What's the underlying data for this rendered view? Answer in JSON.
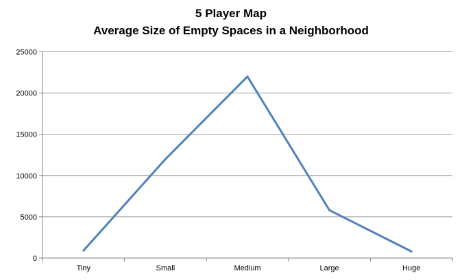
{
  "chart_data": {
    "type": "line",
    "title": "5 Player Map",
    "subtitle": "Average Size of Empty Spaces in a Neighborhood",
    "categories": [
      "Tiny",
      "Small",
      "Medium",
      "Large",
      "Huge"
    ],
    "values": [
      900,
      12000,
      22000,
      5800,
      800
    ],
    "xlabel": "",
    "ylabel": "",
    "ylim": [
      0,
      25000
    ],
    "ytick_interval": 5000,
    "ytick_labels": [
      "0",
      "5000",
      "10000",
      "15000",
      "20000",
      "25000"
    ],
    "grid": true,
    "legend": "none",
    "line_color": "#4F81BD",
    "gridline_color": "#9b9b9b",
    "axis_color": "#808080"
  }
}
